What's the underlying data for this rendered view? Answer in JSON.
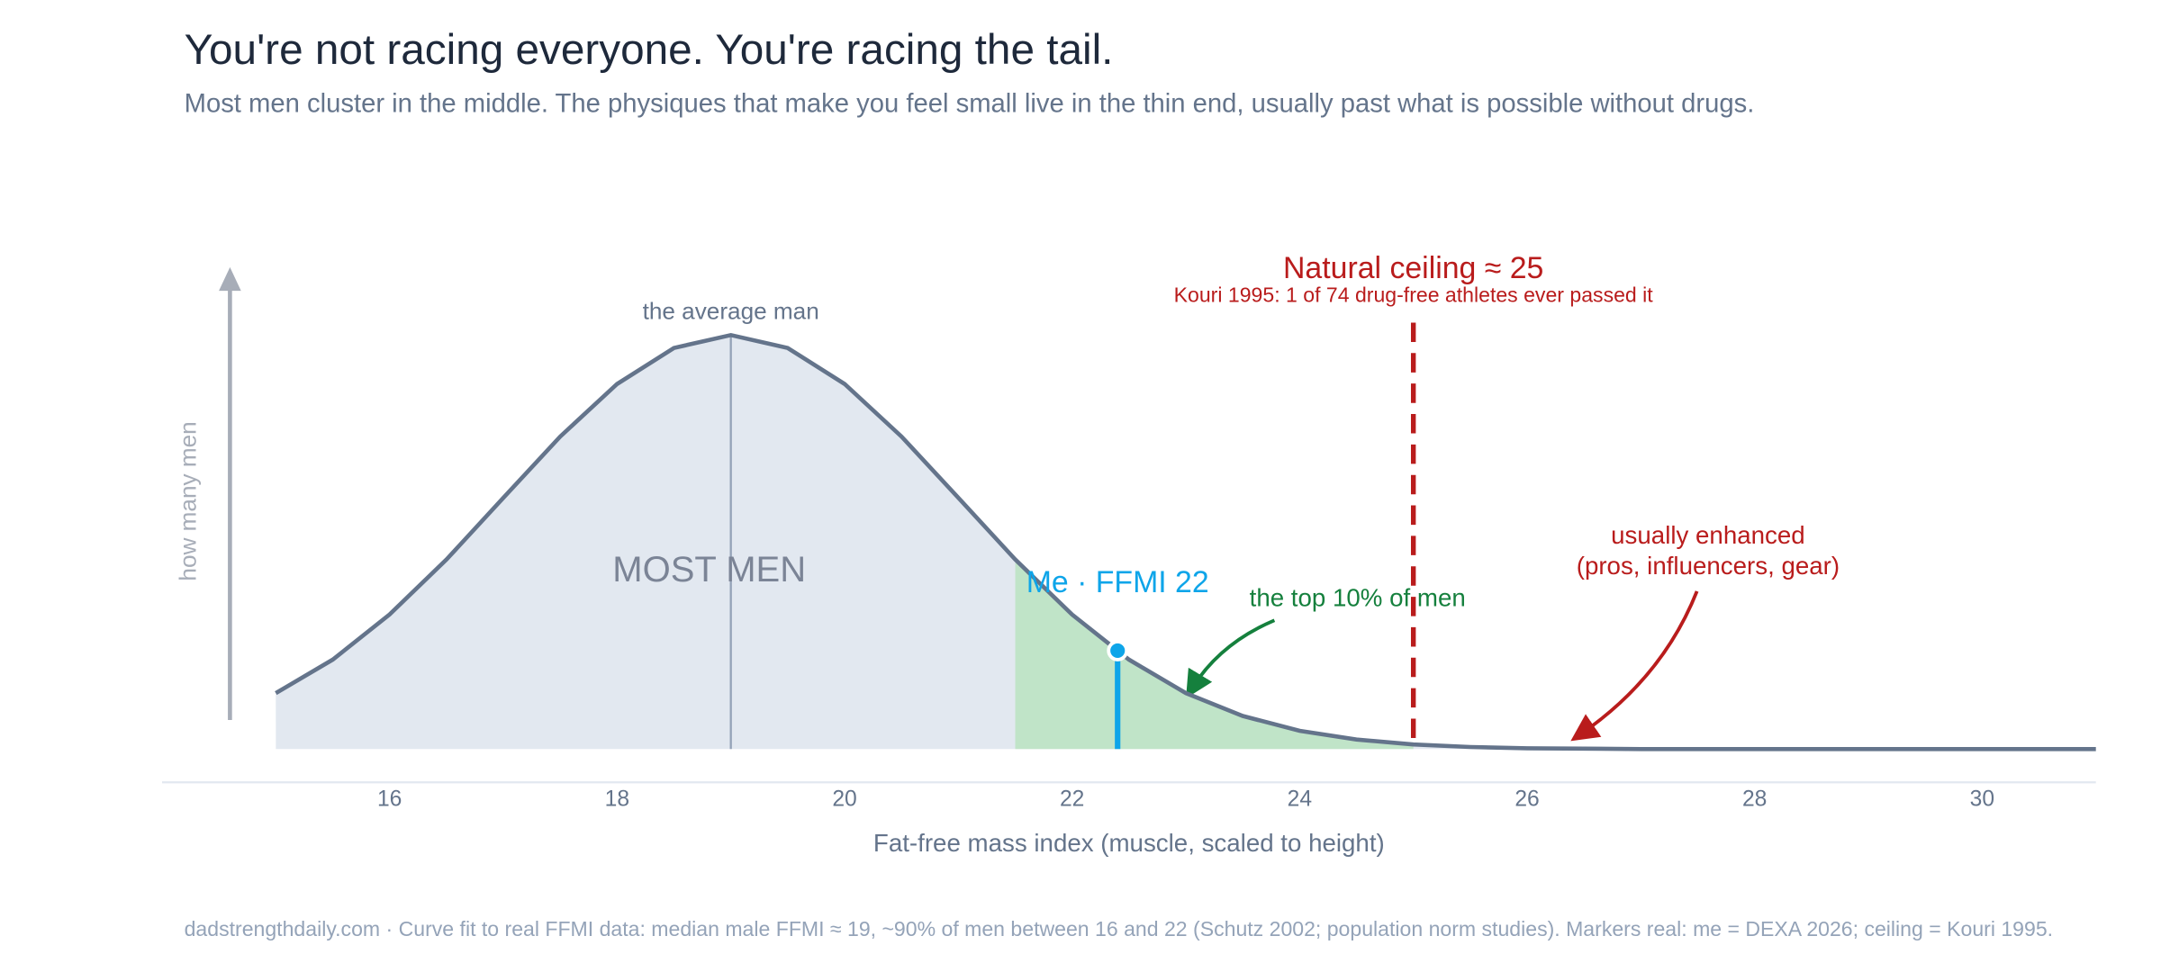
{
  "chart_data": {
    "type": "area",
    "title": "You're not racing everyone. You're racing the tail.",
    "subtitle": "Most men cluster in the middle. The physiques that make you feel small live in the thin end, usually past what is possible without drugs.",
    "x_label": "Fat-free mass index (muscle, scaled to height)",
    "y_label": "how many men",
    "x": [
      15,
      15.5,
      16,
      16.5,
      17,
      17.5,
      18,
      18.5,
      19,
      19.5,
      20,
      20.5,
      21,
      21.5,
      22,
      22.5,
      23,
      23.5,
      24,
      24.5,
      25,
      25.5,
      26,
      26.5,
      27,
      27.5,
      28,
      28.5,
      29,
      29.5,
      30,
      30.5,
      31
    ],
    "values": [
      13.5,
      21.6,
      32.5,
      45.8,
      60.7,
      75.5,
      88.2,
      96.9,
      100,
      96.9,
      88.2,
      75.5,
      60.7,
      45.8,
      32.5,
      21.6,
      13.5,
      8.0,
      4.4,
      2.3,
      1.1,
      0.5,
      0.2,
      0.1,
      0,
      0,
      0,
      0,
      0,
      0,
      0,
      0,
      0
    ],
    "color": "#64748b",
    "fill": "#e2e8f0",
    "xlim": [
      14,
      31
    ],
    "xticks": [
      16,
      18,
      20,
      22,
      24,
      26,
      28,
      30
    ],
    "ylim": [
      0,
      100
    ],
    "average": {
      "x": 19,
      "label": "the average man"
    },
    "cluster_label": "MOST MEN",
    "highlight": {
      "from": 21.5,
      "to": 25,
      "color": "#c0e4c8",
      "label": "the top 10% of men"
    },
    "me": {
      "x": 22.4,
      "label": "Me  ·  FFMI 22",
      "color": "#0ea5e9"
    },
    "ceiling": {
      "x": 25,
      "label": "Natural ceiling ≈ 25",
      "note": "Kouri 1995: 1 of 74 drug-free athletes ever passed it",
      "color": "#b91c1c"
    },
    "enhanced": {
      "label": [
        "usually enhanced",
        "(pros, influencers, gear)"
      ]
    },
    "footnote": "dadstrengthdaily.com  ·  Curve fit to real FFMI data: median male FFMI ≈ 19, ~90% of men between 16 and 22 (Schutz 2002; population norm studies). Markers real: me = DEXA 2026; ceiling = Kouri 1995."
  }
}
